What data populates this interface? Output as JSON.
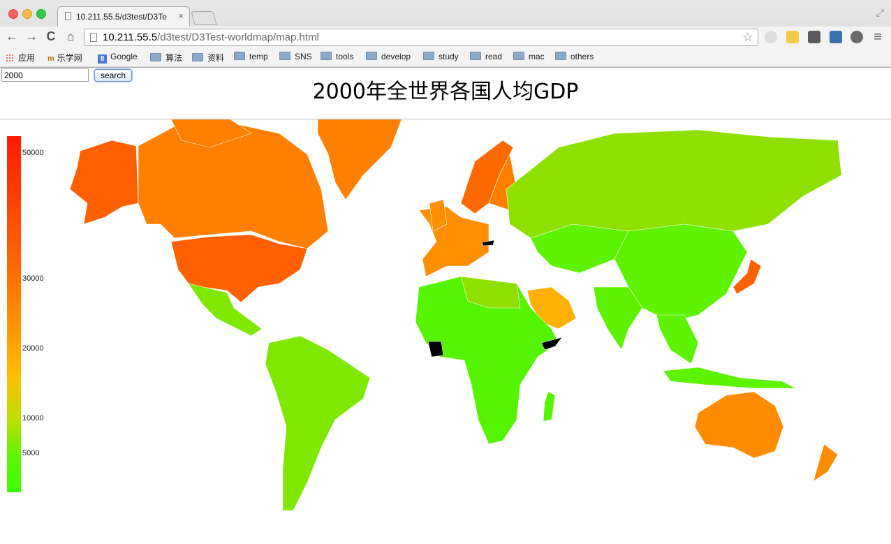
{
  "window": {
    "tab_title": "10.211.55.5/d3test/D3Te",
    "tab_close": "×"
  },
  "toolbar": {
    "back": "←",
    "forward": "→",
    "reload": "C",
    "home": "⌂",
    "url_host": "10.211.55.5",
    "url_path": "/d3test/D3Test-worldmap/map.html",
    "star": "☆",
    "menu": "≡"
  },
  "bookmarks": [
    {
      "label": "应用",
      "icon": "apps-icon"
    },
    {
      "label": "乐学网",
      "icon": "mooc-icon"
    },
    {
      "label": "Google",
      "icon": "google-icon"
    },
    {
      "label": "算法",
      "icon": "folder-icon"
    },
    {
      "label": "资料",
      "icon": "folder-icon"
    },
    {
      "label": "temp",
      "icon": "folder-icon"
    },
    {
      "label": "SNS",
      "icon": "folder-icon"
    },
    {
      "label": "tools",
      "icon": "folder-icon"
    },
    {
      "label": "develop",
      "icon": "folder-icon"
    },
    {
      "label": "study",
      "icon": "folder-icon"
    },
    {
      "label": "read",
      "icon": "folder-icon"
    },
    {
      "label": "mac",
      "icon": "folder-icon"
    },
    {
      "label": "others",
      "icon": "folder-icon"
    }
  ],
  "search": {
    "value": "2000",
    "button_label": "search"
  },
  "page": {
    "title": "2000年全世界各国人均GDP"
  },
  "legend": {
    "ticks": [
      "50000",
      "30000",
      "20000",
      "10000",
      "5000"
    ],
    "colors": {
      "max": "#ff1a00",
      "mid": "#ff8a00",
      "low": "#ffc000",
      "min": "#3cff00"
    }
  },
  "colors": {
    "north_america": "#ff8000",
    "usa": "#ff6000",
    "russia": "#8fe000",
    "europe_west": "#ff8f00",
    "nordic": "#ff6a00",
    "africa": "#55f400",
    "latin_america": "#7ee800",
    "asia": "#5df300",
    "gulf": "#ffb000",
    "australia": "#ff8c00",
    "no_data": "#000000"
  }
}
